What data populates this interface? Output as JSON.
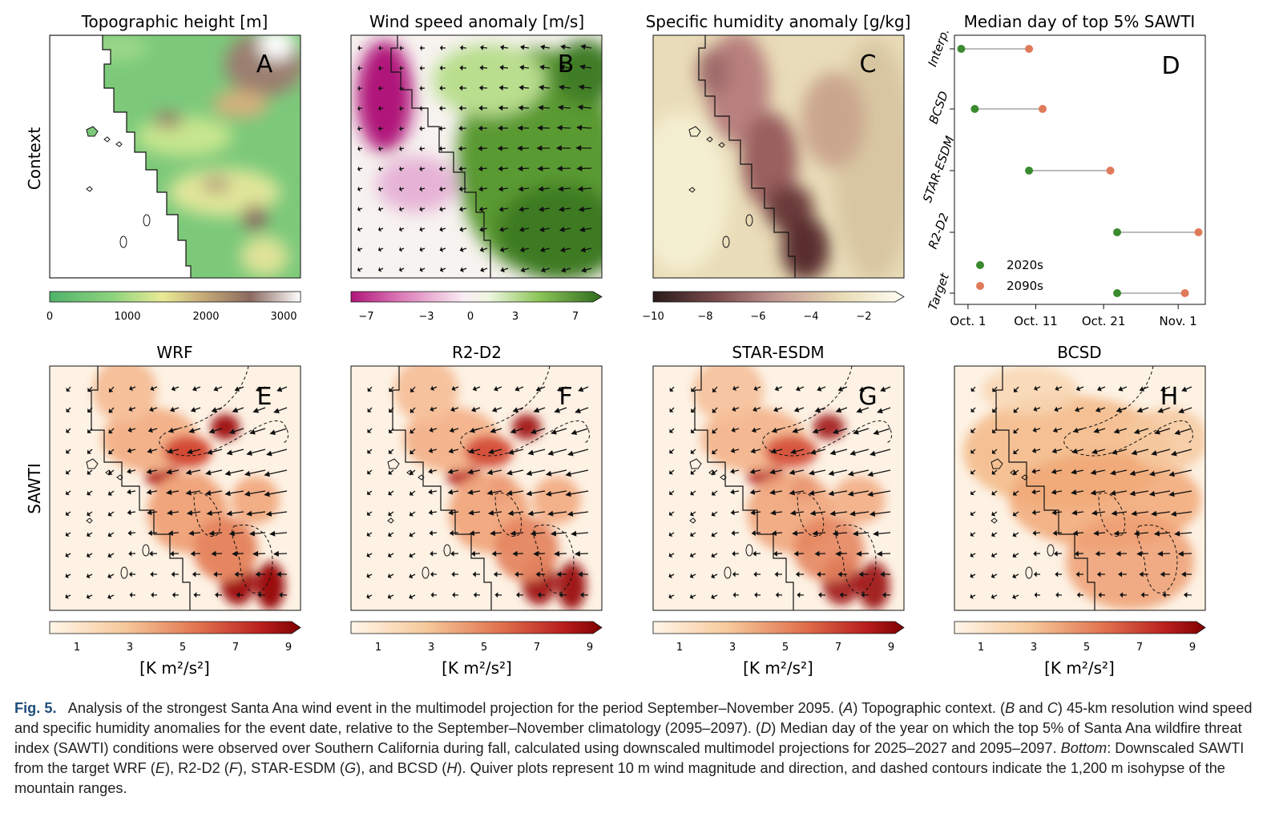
{
  "titles": {
    "A": "Topographic height [m]",
    "B": "Wind speed anomaly [m/s]",
    "C": "Specific humidity anomaly [g/kg]",
    "D": "Median day of top 5% SAWTI",
    "E": "WRF",
    "F": "R2-D2",
    "G": "STAR-ESDM",
    "H": "BCSD"
  },
  "row_labels": {
    "top": "Context",
    "bottom": "SAWTI"
  },
  "panel_letters": [
    "A",
    "B",
    "C",
    "D",
    "E",
    "F",
    "G",
    "H"
  ],
  "colorbars": {
    "topo": {
      "ticks": [
        "0",
        "1000",
        "2000",
        "3000"
      ]
    },
    "wind": {
      "ticks": [
        "−7",
        "−3",
        "0",
        "3",
        "7"
      ]
    },
    "humidity": {
      "ticks": [
        "−10",
        "−8",
        "−6",
        "−4",
        "−2"
      ]
    },
    "sawti": {
      "ticks": [
        "1",
        "3",
        "5",
        "7",
        "9"
      ],
      "unit": "[K m²/s²]"
    }
  },
  "colors": {
    "green_2020s": "#3a8a2f",
    "orange_2090s": "#e07b5a",
    "connector": "#bbbbbb"
  },
  "chart_data": {
    "type": "scatter",
    "title": "Median day of top 5% SAWTI",
    "categories": [
      "Interp.",
      "BCSD",
      "STAR-ESDM",
      "R2-D2",
      "Target"
    ],
    "x_ticks": [
      "Oct. 1",
      "Oct. 11",
      "Oct. 21",
      "Nov. 1"
    ],
    "x_tick_days": [
      274,
      284,
      294,
      305
    ],
    "xlim": [
      272,
      309
    ],
    "series": [
      {
        "name": "2020s",
        "color": "#3a8a2f",
        "values": [
          273,
          275,
          283,
          296,
          296
        ]
      },
      {
        "name": "2090s",
        "color": "#e07b5a",
        "values": [
          283,
          285,
          295,
          308,
          306
        ]
      }
    ],
    "legend": "lower-left"
  },
  "caption": {
    "label": "Fig. 5.",
    "s1": "Analysis of the strongest Santa Ana wind event in the multimodel projection for the period September–November 2095. (",
    "s2": ") Topographic context. (",
    "s3": " and ",
    "s4": ") 45-km resolution wind speed and specific humidity anomalies for the event date, relative to the September–November climatology (2095–2097). (",
    "s5": ") Median day of the year on which the top 5% of Santa Ana wildfire threat index (SAWTI) conditions were observed over Southern California during fall, calculated using downscaled multimodel projections for 2025–2027 and 2095–2097. ",
    "bottom": "Bottom",
    "s6": ": Downscaled SAWTI from the target WRF (",
    "s7": "), R2-D2 (",
    "s8": "), STAR-ESDM (",
    "s9": "), and BCSD (",
    "s10": "). Quiver plots represent 10 m wind magnitude and direction, and dashed contours indicate the 1,200 m isohypse of the mountain ranges."
  }
}
